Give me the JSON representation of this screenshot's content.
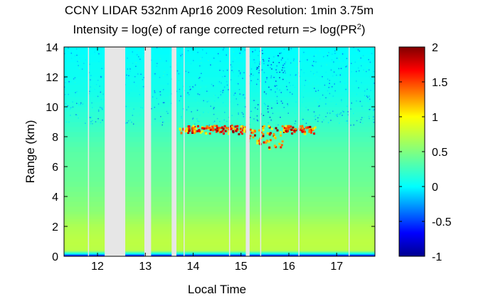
{
  "chart_data": {
    "type": "heatmap",
    "title_line1": "CCNY LIDAR 532nm Apr16 2009 Resolution: 1min 3.75m",
    "title_line2_prefix": "Intensity = log(e) of range corrected return => log(PR",
    "title_line2_sup": "2",
    "title_line2_suffix": ")",
    "xlabel": "Local Time",
    "ylabel": "Range (km)",
    "xlim": [
      11.3,
      17.8
    ],
    "ylim": [
      0,
      14
    ],
    "x_ticks": [
      12,
      13,
      14,
      15,
      16,
      17
    ],
    "y_ticks": [
      0,
      2,
      4,
      6,
      8,
      10,
      12,
      14
    ],
    "colorbar": {
      "range": [
        -1,
        2
      ],
      "ticks": [
        -1,
        -0.5,
        0,
        0.5,
        1,
        1.5,
        2
      ],
      "tick_labels": [
        "-1",
        "-0.5",
        "0",
        "0.5",
        "1",
        "1.5",
        "2"
      ],
      "colormap": "jet"
    },
    "data_gaps": [
      {
        "start": 12.15,
        "end": 12.58
      },
      {
        "start": 12.98,
        "end": 13.12
      },
      {
        "start": 13.55,
        "end": 13.65
      },
      {
        "start": 15.1,
        "end": 15.18
      }
    ],
    "thin_gaps": [
      11.8,
      13.8,
      14.75,
      15.4,
      16.2,
      17.25
    ],
    "profile": [
      {
        "range": 0.0,
        "value": -0.9
      },
      {
        "range": 0.2,
        "value": 0.05
      },
      {
        "range": 0.4,
        "value": 0.72
      },
      {
        "range": 1.0,
        "value": 0.74
      },
      {
        "range": 2.0,
        "value": 0.68
      },
      {
        "range": 3.0,
        "value": 0.55
      },
      {
        "range": 5.0,
        "value": 0.42
      },
      {
        "range": 7.0,
        "value": 0.35
      },
      {
        "range": 9.0,
        "value": 0.2
      },
      {
        "range": 11.0,
        "value": 0.08
      },
      {
        "range": 14.0,
        "value": 0.0
      }
    ],
    "cloud_layer": {
      "x_start": 13.7,
      "x_end": 16.55,
      "base_km": 8.2,
      "top_km": 8.8,
      "peak_value": 2.0,
      "deep_region": {
        "x_start": 15.1,
        "x_end": 15.85,
        "base_km": 7.1
      }
    }
  }
}
